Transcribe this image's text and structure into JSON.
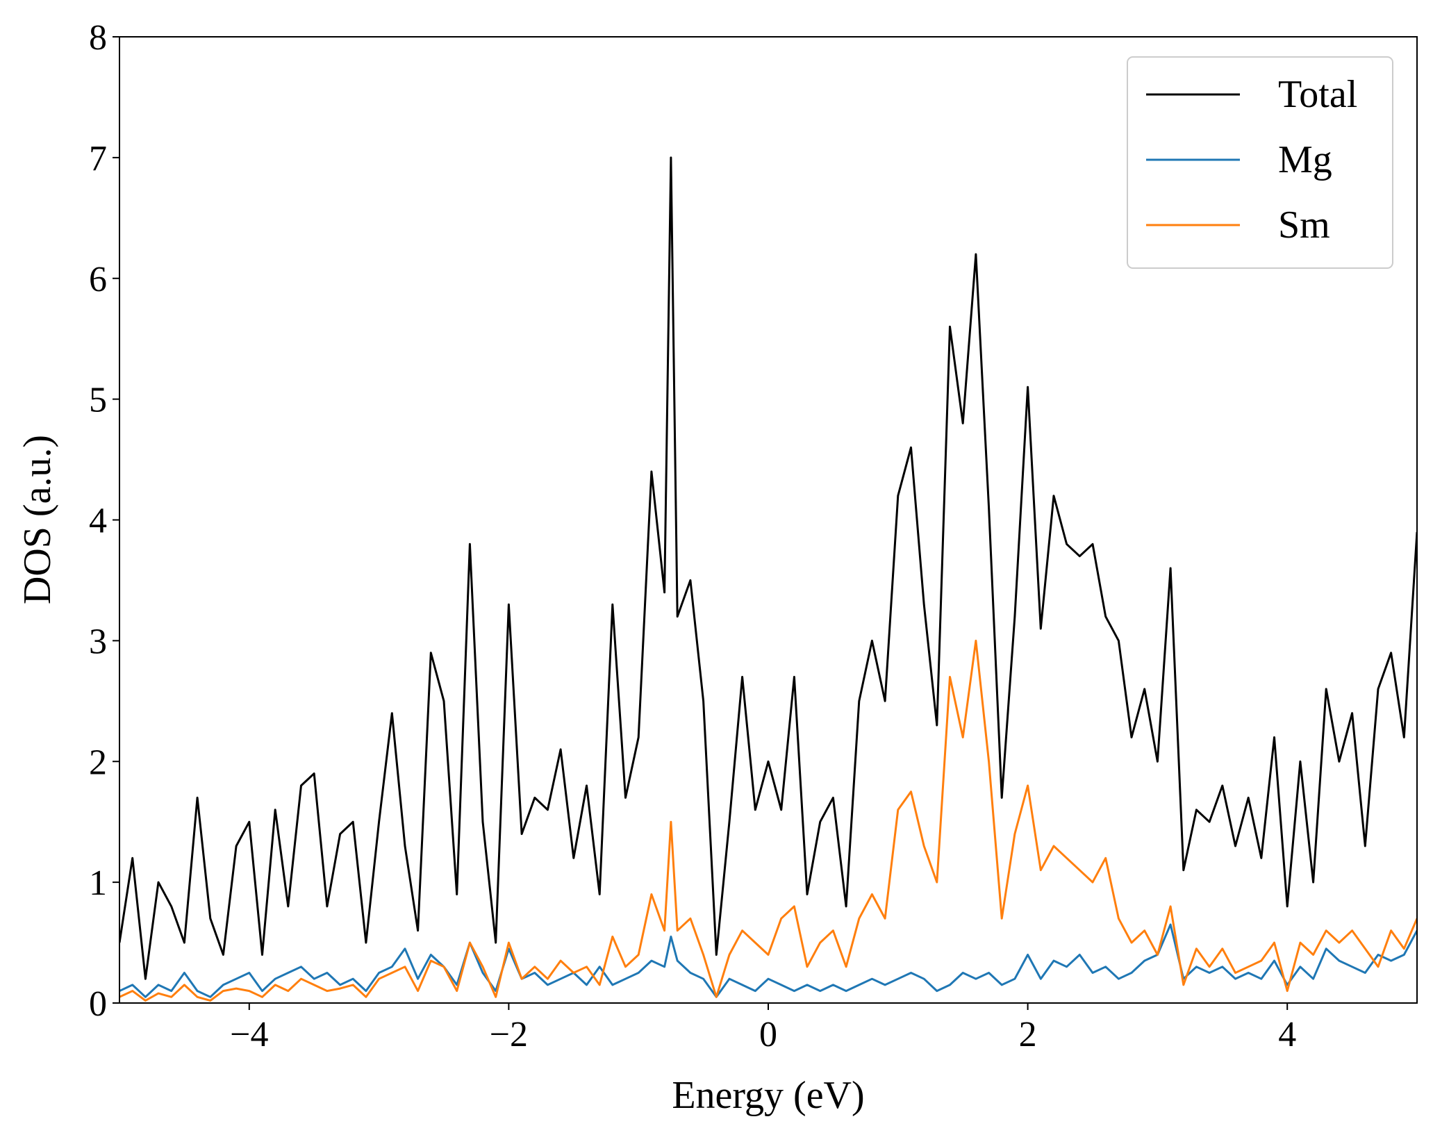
{
  "chart_data": {
    "type": "line",
    "xlabel": "Energy (eV)",
    "ylabel": "DOS (a.u.)",
    "xlim": [
      -5,
      5
    ],
    "ylim": [
      0,
      8
    ],
    "xticks": [
      {
        "value": -4,
        "label": "−4"
      },
      {
        "value": -2,
        "label": "−2"
      },
      0,
      2,
      4
    ],
    "yticks": [
      0,
      1,
      2,
      3,
      4,
      5,
      6,
      7,
      8
    ],
    "legend": "upper right",
    "x": [
      -5.0,
      -4.9,
      -4.8,
      -4.7,
      -4.6,
      -4.5,
      -4.4,
      -4.3,
      -4.2,
      -4.1,
      -4.0,
      -3.9,
      -3.8,
      -3.7,
      -3.6,
      -3.5,
      -3.4,
      -3.3,
      -3.2,
      -3.1,
      -3.0,
      -2.9,
      -2.8,
      -2.7,
      -2.6,
      -2.5,
      -2.4,
      -2.3,
      -2.2,
      -2.1,
      -2.0,
      -1.9,
      -1.8,
      -1.7,
      -1.6,
      -1.5,
      -1.4,
      -1.3,
      -1.2,
      -1.1,
      -1.0,
      -0.9,
      -0.8,
      -0.75,
      -0.7,
      -0.6,
      -0.5,
      -0.4,
      -0.3,
      -0.2,
      -0.1,
      0.0,
      0.1,
      0.2,
      0.3,
      0.4,
      0.5,
      0.6,
      0.7,
      0.8,
      0.9,
      1.0,
      1.1,
      1.2,
      1.3,
      1.4,
      1.5,
      1.6,
      1.7,
      1.8,
      1.9,
      2.0,
      2.1,
      2.2,
      2.3,
      2.4,
      2.5,
      2.6,
      2.7,
      2.8,
      2.9,
      3.0,
      3.1,
      3.2,
      3.3,
      3.4,
      3.5,
      3.6,
      3.7,
      3.8,
      3.9,
      4.0,
      4.1,
      4.2,
      4.3,
      4.4,
      4.5,
      4.6,
      4.7,
      4.8,
      4.9,
      5.0
    ],
    "series": [
      {
        "name": "Total",
        "color": "#000000",
        "values": [
          0.5,
          1.2,
          0.2,
          1.0,
          0.8,
          0.5,
          1.7,
          0.7,
          0.4,
          1.3,
          1.5,
          0.4,
          1.6,
          0.8,
          1.8,
          1.9,
          0.8,
          1.4,
          1.5,
          0.5,
          1.5,
          2.4,
          1.3,
          0.6,
          2.9,
          2.5,
          0.9,
          3.8,
          1.5,
          0.5,
          3.3,
          1.4,
          1.7,
          1.6,
          2.1,
          1.2,
          1.8,
          0.9,
          3.3,
          1.7,
          2.2,
          4.4,
          3.4,
          7.0,
          3.2,
          3.5,
          2.5,
          0.4,
          1.5,
          2.7,
          1.6,
          2.0,
          1.6,
          2.7,
          0.9,
          1.5,
          1.7,
          0.8,
          2.5,
          3.0,
          2.5,
          4.2,
          4.6,
          3.3,
          2.3,
          5.6,
          4.8,
          6.2,
          4.1,
          1.7,
          3.2,
          5.1,
          3.1,
          4.2,
          3.8,
          3.7,
          3.8,
          3.2,
          3.0,
          2.2,
          2.6,
          2.0,
          3.6,
          1.1,
          1.6,
          1.5,
          1.8,
          1.3,
          1.7,
          1.2,
          2.2,
          0.8,
          2.0,
          1.0,
          2.6,
          2.0,
          2.4,
          1.3,
          2.6,
          2.9,
          2.2,
          3.9
        ]
      },
      {
        "name": "Mg",
        "color": "#1f77b4",
        "values": [
          0.1,
          0.15,
          0.05,
          0.15,
          0.1,
          0.25,
          0.1,
          0.05,
          0.15,
          0.2,
          0.25,
          0.1,
          0.2,
          0.25,
          0.3,
          0.2,
          0.25,
          0.15,
          0.2,
          0.1,
          0.25,
          0.3,
          0.45,
          0.2,
          0.4,
          0.3,
          0.15,
          0.5,
          0.25,
          0.1,
          0.45,
          0.2,
          0.25,
          0.15,
          0.2,
          0.25,
          0.15,
          0.3,
          0.15,
          0.2,
          0.25,
          0.35,
          0.3,
          0.55,
          0.35,
          0.25,
          0.2,
          0.05,
          0.2,
          0.15,
          0.1,
          0.2,
          0.15,
          0.1,
          0.15,
          0.1,
          0.15,
          0.1,
          0.15,
          0.2,
          0.15,
          0.2,
          0.25,
          0.2,
          0.1,
          0.15,
          0.25,
          0.2,
          0.25,
          0.15,
          0.2,
          0.4,
          0.2,
          0.35,
          0.3,
          0.4,
          0.25,
          0.3,
          0.2,
          0.25,
          0.35,
          0.4,
          0.65,
          0.2,
          0.3,
          0.25,
          0.3,
          0.2,
          0.25,
          0.2,
          0.35,
          0.15,
          0.3,
          0.2,
          0.45,
          0.35,
          0.3,
          0.25,
          0.4,
          0.35,
          0.4,
          0.6
        ]
      },
      {
        "name": "Sm",
        "color": "#ff7f0e",
        "values": [
          0.05,
          0.1,
          0.02,
          0.08,
          0.05,
          0.15,
          0.05,
          0.02,
          0.1,
          0.12,
          0.1,
          0.05,
          0.15,
          0.1,
          0.2,
          0.15,
          0.1,
          0.12,
          0.15,
          0.05,
          0.2,
          0.25,
          0.3,
          0.1,
          0.35,
          0.3,
          0.1,
          0.5,
          0.3,
          0.05,
          0.5,
          0.2,
          0.3,
          0.2,
          0.35,
          0.25,
          0.3,
          0.15,
          0.55,
          0.3,
          0.4,
          0.9,
          0.6,
          1.5,
          0.6,
          0.7,
          0.4,
          0.05,
          0.4,
          0.6,
          0.5,
          0.4,
          0.7,
          0.8,
          0.3,
          0.5,
          0.6,
          0.3,
          0.7,
          0.9,
          0.7,
          1.6,
          1.75,
          1.3,
          1.0,
          2.7,
          2.2,
          3.0,
          2.0,
          0.7,
          1.4,
          1.8,
          1.1,
          1.3,
          1.2,
          1.1,
          1.0,
          1.2,
          0.7,
          0.5,
          0.6,
          0.4,
          0.8,
          0.15,
          0.45,
          0.3,
          0.45,
          0.25,
          0.3,
          0.35,
          0.5,
          0.1,
          0.5,
          0.4,
          0.6,
          0.5,
          0.6,
          0.45,
          0.3,
          0.6,
          0.45,
          0.7
        ]
      }
    ]
  }
}
